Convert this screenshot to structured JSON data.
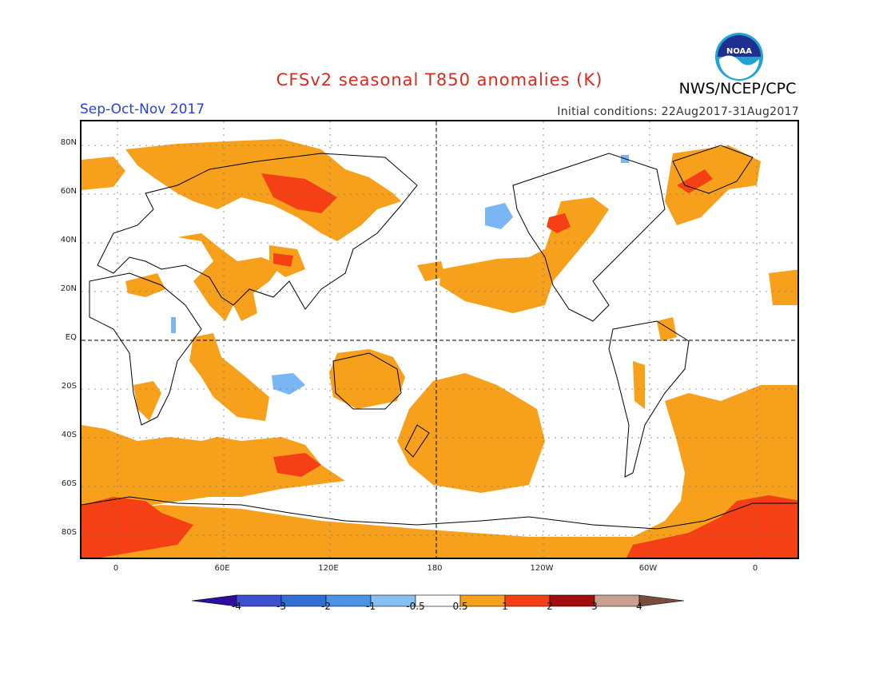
{
  "header": {
    "title": "CFSv2 seasonal T850 anomalies (K)",
    "season": "Sep-Oct-Nov 2017",
    "initial_conditions": "Initial conditions: 22Aug2017-31Aug2017",
    "agency": "NWS/NCEP/CPC",
    "logo_text": "NOAA"
  },
  "map": {
    "lat_labels": [
      "80N",
      "60N",
      "40N",
      "20N",
      "EQ",
      "20S",
      "40S",
      "60S",
      "80S"
    ],
    "lon_labels": [
      "0",
      "60E",
      "120E",
      "180",
      "120W",
      "60W",
      "0"
    ],
    "colors": {
      "background": "#ffffff",
      "warm_1": "#f7a01b",
      "warm_2": "#f53f14",
      "cool_1": "#79b6f3",
      "coastline": "#000000",
      "grid": "#555555"
    }
  },
  "colorbar": {
    "labels": [
      "-4",
      "-3",
      "-2",
      "-1",
      "-0.5",
      "0.5",
      "1",
      "2",
      "3",
      "4"
    ],
    "colors": [
      "#2b0f9c",
      "#3f4fd2",
      "#2f6fd6",
      "#4c93e8",
      "#87bff2",
      "#ffffff",
      "#f7a01b",
      "#f53f14",
      "#a30d0d",
      "#c8a08d",
      "#7a4c3e"
    ]
  }
}
